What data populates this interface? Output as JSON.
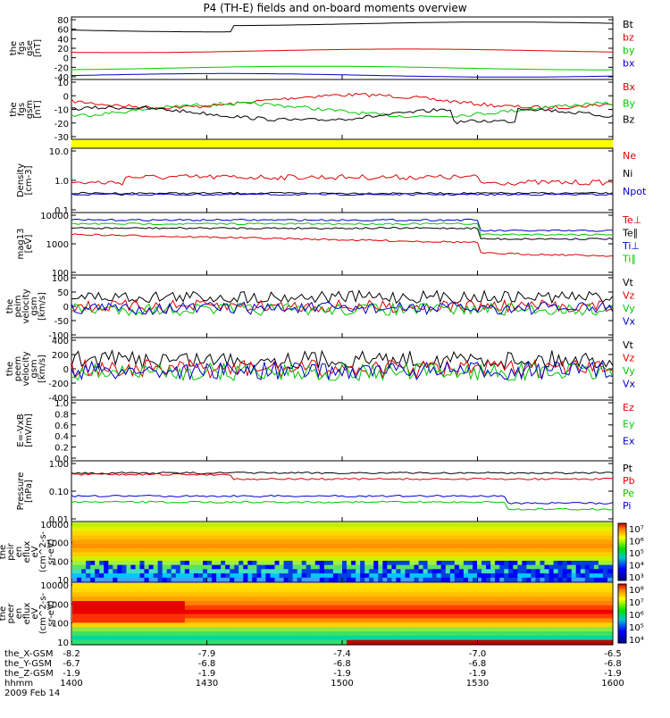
{
  "title": "P4 (TH-E) fields and on-board moments overview",
  "colors": {
    "black": "#000000",
    "red": "#e00000",
    "green": "#00c800",
    "blue": "#0000c8",
    "yellow": "#ffff00"
  },
  "chart_data": [
    {
      "type": "line",
      "ylabel": [
        "the",
        "fgs",
        "gse",
        "[nT]"
      ],
      "yticks": [
        "80",
        "60",
        "40",
        "20",
        "0",
        "-20",
        "-40"
      ],
      "ylim": [
        -40,
        80
      ],
      "series": [
        {
          "name": "Bt",
          "color": "#000000",
          "level": 60
        },
        {
          "name": "bz",
          "color": "#e00000",
          "level": 15
        },
        {
          "name": "by",
          "color": "#00c800",
          "level": -18
        },
        {
          "name": "bx",
          "color": "#0000c8",
          "level": -32
        }
      ]
    },
    {
      "type": "line",
      "ylabel": [
        "the",
        "fgs",
        "gsm",
        "[nT]"
      ],
      "yticks": [
        "10",
        "0",
        "-10",
        "-20",
        "-30"
      ],
      "ylim": [
        -35,
        12
      ],
      "series": [
        {
          "name": "Bx",
          "color": "#e00000",
          "level": -5
        },
        {
          "name": "By",
          "color": "#00c800",
          "level": -12
        },
        {
          "name": "Bz",
          "color": "#000000",
          "level": -15
        }
      ]
    },
    {
      "type": "bar",
      "note": "yellow status bar"
    },
    {
      "type": "line",
      "ylabel": [
        "Density",
        "[cm-3]"
      ],
      "yticks": [
        "10.0",
        "1.0",
        "0.1"
      ],
      "log": true,
      "series": [
        {
          "name": "Ne",
          "color": "#e00000",
          "level": 0.6
        },
        {
          "name": "Ni",
          "color": "#000000",
          "level": 0.3
        },
        {
          "name": "Npot",
          "color": "#0000c8",
          "level": 0.25
        }
      ]
    },
    {
      "type": "line",
      "ylabel": [
        "mag13",
        "[eV]"
      ],
      "yticks": [
        "10000",
        "1000",
        "100"
      ],
      "log": true,
      "series": [
        {
          "name": "Te⊥",
          "color": "#e00000"
        },
        {
          "name": "Te∥",
          "color": "#000000"
        },
        {
          "name": "Ti⊥",
          "color": "#0000c8"
        },
        {
          "name": "Ti∥",
          "color": "#00c800"
        }
      ]
    },
    {
      "type": "line",
      "ylabel": [
        "the",
        "peim",
        "velocity",
        "gsm",
        "[km/s]"
      ],
      "yticks": [
        "100",
        "50",
        "0",
        "-50",
        "-100"
      ],
      "ylim": [
        -100,
        100
      ],
      "series": [
        {
          "name": "Vt",
          "color": "#000000"
        },
        {
          "name": "Vz",
          "color": "#e00000"
        },
        {
          "name": "Vy",
          "color": "#00c800"
        },
        {
          "name": "Vx",
          "color": "#0000c8"
        }
      ]
    },
    {
      "type": "line",
      "ylabel": [
        "the",
        "peem",
        "velocity",
        "gsm",
        "[km/s]"
      ],
      "yticks": [
        "400",
        "200",
        "0",
        "-200",
        "-400"
      ],
      "ylim": [
        -400,
        400
      ],
      "series": [
        {
          "name": "Vt",
          "color": "#000000"
        },
        {
          "name": "Vz",
          "color": "#e00000"
        },
        {
          "name": "Vy",
          "color": "#00c800"
        },
        {
          "name": "Vx",
          "color": "#0000c8"
        }
      ]
    },
    {
      "type": "line",
      "ylabel": [
        "E=-VxB",
        "[mV/m]"
      ],
      "yticks": [
        "1.0",
        "0.8",
        "0.6",
        "0.4",
        "0.2",
        "0.0"
      ],
      "ylim": [
        0,
        1
      ],
      "series": [
        {
          "name": "Ez",
          "color": "#e00000"
        },
        {
          "name": "Ey",
          "color": "#00c800"
        },
        {
          "name": "Ex",
          "color": "#0000c8"
        }
      ]
    },
    {
      "type": "line",
      "ylabel": [
        "Pressure",
        "[nPa]"
      ],
      "yticks": [
        "1.00",
        "0.10",
        "0.01"
      ],
      "log": true,
      "series": [
        {
          "name": "Pt",
          "color": "#000000"
        },
        {
          "name": "Pb",
          "color": "#e00000"
        },
        {
          "name": "Pe",
          "color": "#00c800"
        },
        {
          "name": "Pi",
          "color": "#0000c8"
        }
      ]
    },
    {
      "type": "heatmap",
      "ylabel": [
        "the",
        "peir",
        "en",
        "eflux",
        "eV",
        "(cm^2-s-",
        "sr-eV)"
      ],
      "yticks": [
        "10000",
        "1000",
        "100",
        "10"
      ],
      "colorbar": {
        "ticks": [
          "10⁷",
          "10⁶",
          "10⁵",
          "10⁴",
          "10³"
        ]
      }
    },
    {
      "type": "heatmap",
      "ylabel": [
        "the",
        "peer",
        "en",
        "eflux",
        "eV",
        "(cm^2-s-",
        "sr-eV)"
      ],
      "yticks": [
        "10000",
        "1000",
        "100",
        "10"
      ],
      "colorbar": {
        "ticks": [
          "10⁸",
          "10⁷",
          "10⁶",
          "10⁵",
          "10⁴"
        ]
      }
    }
  ],
  "xaxis": {
    "rows": [
      {
        "label": "the_X-GSM",
        "values": [
          "-8.2",
          "-7.9",
          "-7.4",
          "-7.0",
          "-6.5"
        ]
      },
      {
        "label": "the_Y-GSM",
        "values": [
          "-6.7",
          "-6.8",
          "-6.8",
          "-6.8",
          "-6.8"
        ]
      },
      {
        "label": "the_Z-GSM",
        "values": [
          "-1.9",
          "-1.9",
          "-1.9",
          "-1.9",
          "-1.9"
        ]
      },
      {
        "label": "hhmm",
        "values": [
          "1400",
          "1430",
          "1500",
          "1530",
          "1600"
        ]
      }
    ],
    "date": "2009 Feb 14"
  }
}
